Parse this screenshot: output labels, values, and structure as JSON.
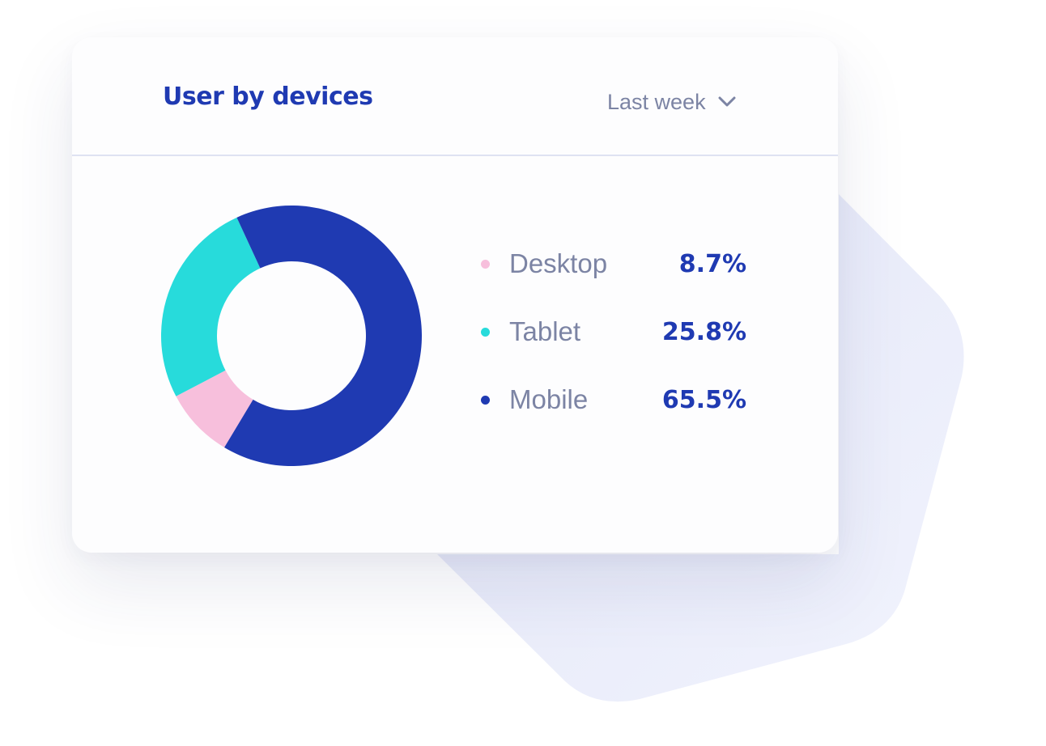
{
  "card": {
    "title": "User by devices",
    "period": {
      "selected": "Last week",
      "icon": "chevron-down-icon"
    }
  },
  "colors": {
    "title": "#1f3ab2",
    "muted_text": "#7c84a4",
    "divider": "#dfe2f2",
    "desktop": "#f7bfdc",
    "tablet": "#27dbdb",
    "mobile": "#1f3ab2",
    "backdrop_shape": "#e9ecfb"
  },
  "chart_data": {
    "type": "pie",
    "style": "donut",
    "title": "",
    "legend_position": "right",
    "categories": [
      "Desktop",
      "Tablet",
      "Mobile"
    ],
    "values": [
      8.7,
      25.8,
      65.5
    ],
    "value_labels": [
      "8.7%",
      "25.8%",
      "65.5%"
    ],
    "unit": "%"
  }
}
